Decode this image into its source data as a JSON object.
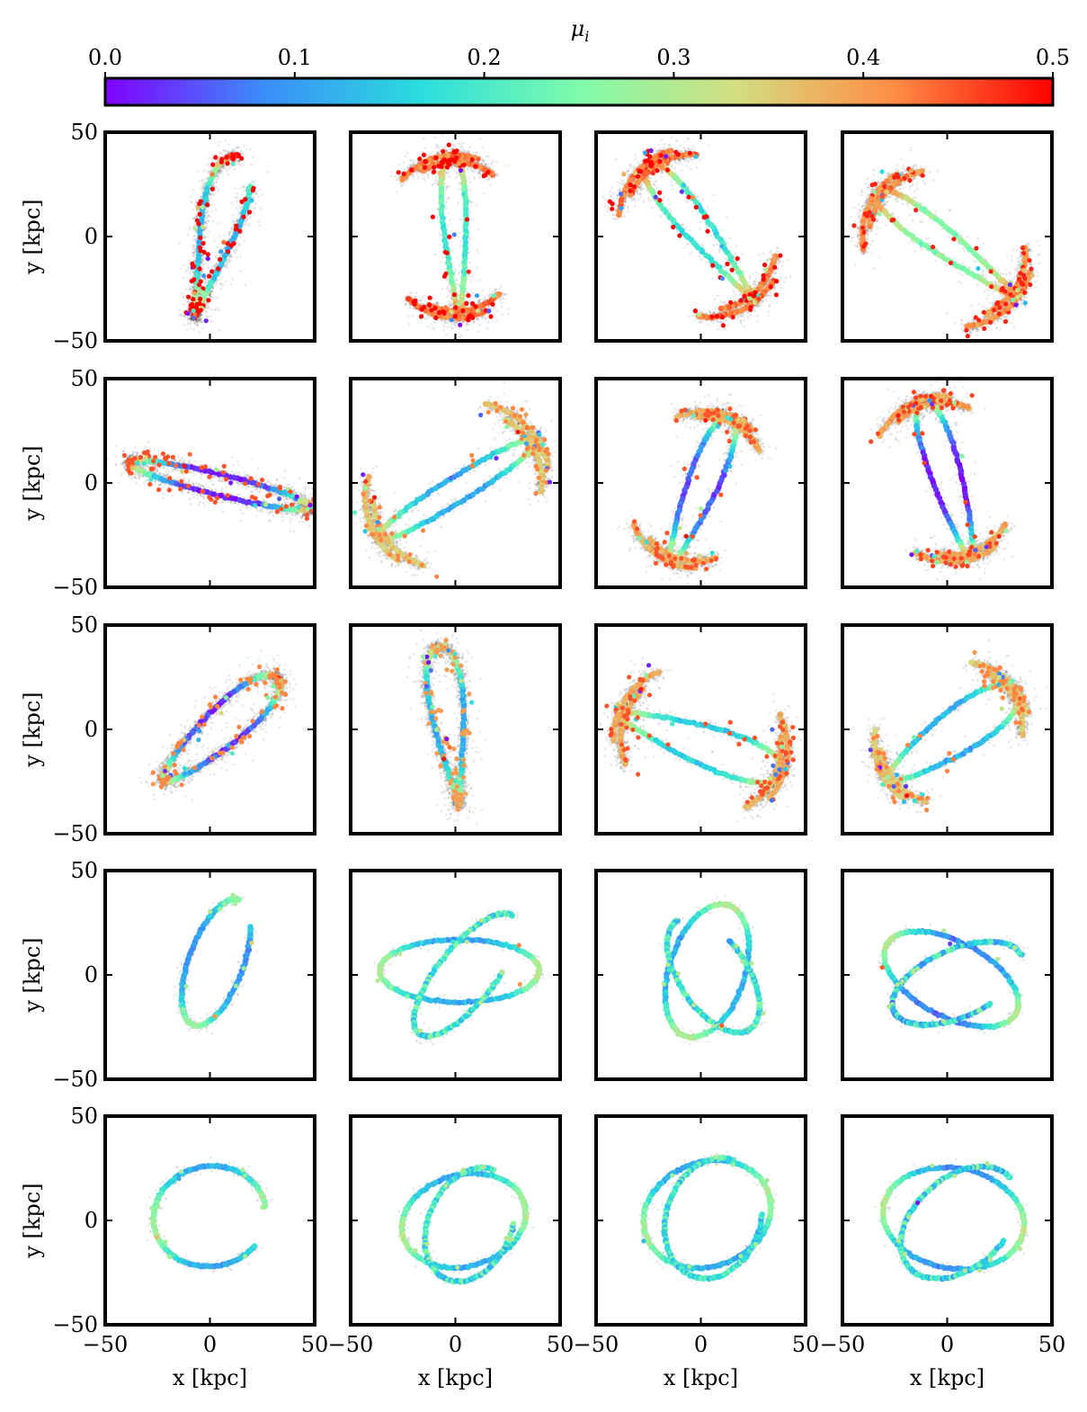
{
  "chart_data": {
    "type": "scatter",
    "grid": false,
    "layout": "5 rows x 4 columns of panels, shared axes",
    "xlabel": "x [kpc]",
    "ylabel": "y [kpc]",
    "xlim": [
      -50,
      50
    ],
    "ylim": [
      -50,
      50
    ],
    "x_ticks": [
      -50,
      0,
      50
    ],
    "y_ticks": [
      -50,
      0,
      50
    ],
    "x_tick_labels": [
      "−50",
      "0",
      "50"
    ],
    "y_tick_labels": [
      "−50",
      "0",
      "50"
    ],
    "colorbar": {
      "label": "μ",
      "label_subscript": "i",
      "placement": "top",
      "range": [
        0.0,
        0.5
      ],
      "ticks": [
        0.0,
        0.1,
        0.2,
        0.3,
        0.4,
        0.5
      ],
      "tick_labels": [
        "0.0",
        "0.1",
        "0.2",
        "0.3",
        "0.4",
        "0.5"
      ],
      "colormap": "rainbow",
      "colors": [
        "#8000ff",
        "#3b8df9",
        "#2adddd",
        "#7ffbaa",
        "#d4dd80",
        "#ff8c45",
        "#ff0000"
      ]
    },
    "panels": [
      {
        "row": 1,
        "col": 1,
        "shape": "s-stream",
        "center": [
          3,
          0
        ],
        "axes": [
          40,
          8
        ],
        "angle": 75,
        "twist": 0.25,
        "mu_core": 0.12,
        "mu_ends": 0.5
      },
      {
        "row": 1,
        "col": 2,
        "shape": "s-stream-shells",
        "center": [
          0,
          0
        ],
        "axes": [
          39,
          5
        ],
        "angle": 93,
        "twist": 0.12,
        "mu_core": 0.2,
        "mu_ends": 0.5
      },
      {
        "row": 1,
        "col": 3,
        "shape": "s-stream-shells",
        "center": [
          0,
          2
        ],
        "axes": [
          42,
          6
        ],
        "angle": 128,
        "twist": 0.15,
        "mu_core": 0.18,
        "mu_ends": 0.5
      },
      {
        "row": 1,
        "col": 4,
        "shape": "s-stream-shells",
        "center": [
          0,
          -4
        ],
        "axes": [
          42,
          6
        ],
        "angle": 143,
        "twist": 0.12,
        "mu_core": 0.25,
        "mu_ends": 0.48
      },
      {
        "row": 2,
        "col": 1,
        "shape": "thin-loop",
        "center": [
          5,
          -1
        ],
        "axes": [
          45,
          5
        ],
        "angle": -14,
        "twist": 0.0,
        "mu_core": 0.02,
        "mu_ends": 0.45
      },
      {
        "row": 2,
        "col": 2,
        "shape": "thin-loop-shells",
        "center": [
          1,
          -3
        ],
        "axes": [
          45,
          6
        ],
        "angle": 32,
        "twist": 0.0,
        "mu_core": 0.12,
        "mu_ends": 0.42
      },
      {
        "row": 2,
        "col": 3,
        "shape": "thin-loop-shells",
        "center": [
          0,
          -3
        ],
        "axes": [
          38,
          7
        ],
        "angle": 68,
        "twist": 0.1,
        "mu_core": 0.05,
        "mu_ends": 0.45
      },
      {
        "row": 2,
        "col": 4,
        "shape": "thin-loop-shells",
        "center": [
          0,
          2
        ],
        "axes": [
          40,
          7
        ],
        "angle": 107,
        "twist": 0.1,
        "mu_core": 0.02,
        "mu_ends": 0.46
      },
      {
        "row": 3,
        "col": 1,
        "shape": "ellipse",
        "center": [
          5,
          0
        ],
        "axes": [
          37,
          9
        ],
        "angle": 42,
        "twist": 0.1,
        "mu_core": 0.03,
        "mu_ends": 0.42
      },
      {
        "row": 3,
        "col": 2,
        "shape": "ellipse",
        "center": [
          -3,
          2
        ],
        "axes": [
          38,
          7
        ],
        "angle": 97,
        "twist": 0.2,
        "mu_core": 0.12,
        "mu_ends": 0.4
      },
      {
        "row": 3,
        "col": 3,
        "shape": "ellipse-shells",
        "center": [
          0,
          -7
        ],
        "axes": [
          42,
          9
        ],
        "angle": -20,
        "twist": 0.15,
        "mu_core": 0.15,
        "mu_ends": 0.45
      },
      {
        "row": 3,
        "col": 4,
        "shape": "ellipse-shells",
        "center": [
          2,
          -3
        ],
        "axes": [
          38,
          10
        ],
        "angle": 35,
        "twist": 0.15,
        "mu_core": 0.12,
        "mu_ends": 0.42
      },
      {
        "row": 4,
        "col": 1,
        "shape": "open-loop",
        "center": [
          3,
          6
        ],
        "axes": [
          32,
          13
        ],
        "angle": 70,
        "twist": 0.0,
        "mu_core": 0.1,
        "mu_ends": 0.28
      },
      {
        "row": 4,
        "col": 2,
        "shape": "rosette",
        "center": [
          2,
          2
        ],
        "axes": [
          38,
          15
        ],
        "angle": 0,
        "twist": 0.0,
        "mu_core": 0.12,
        "mu_ends": 0.3
      },
      {
        "row": 4,
        "col": 3,
        "shape": "rosette",
        "center": [
          3,
          2
        ],
        "axes": [
          33,
          18
        ],
        "angle": 72,
        "twist": 0.0,
        "mu_core": 0.12,
        "mu_ends": 0.3
      },
      {
        "row": 4,
        "col": 4,
        "shape": "rosette",
        "center": [
          2,
          -2
        ],
        "axes": [
          35,
          18
        ],
        "angle": -28,
        "twist": 0.0,
        "mu_core": 0.08,
        "mu_ends": 0.3
      },
      {
        "row": 5,
        "col": 1,
        "shape": "open-loop",
        "center": [
          0,
          2
        ],
        "axes": [
          27,
          24
        ],
        "angle": 10,
        "twist": 0.0,
        "mu_core": 0.12,
        "mu_ends": 0.28
      },
      {
        "row": 5,
        "col": 2,
        "shape": "rosette",
        "center": [
          4,
          0
        ],
        "axes": [
          30,
          22
        ],
        "angle": 15,
        "twist": 0.0,
        "mu_core": 0.12,
        "mu_ends": 0.3
      },
      {
        "row": 5,
        "col": 3,
        "shape": "rosette",
        "center": [
          3,
          3
        ],
        "axes": [
          31,
          25
        ],
        "angle": 20,
        "twist": 0.0,
        "mu_core": 0.12,
        "mu_ends": 0.28
      },
      {
        "row": 5,
        "col": 4,
        "shape": "rosette",
        "center": [
          3,
          1
        ],
        "axes": [
          34,
          24
        ],
        "angle": -10,
        "twist": 0.0,
        "mu_core": 0.1,
        "mu_ends": 0.3
      }
    ]
  }
}
